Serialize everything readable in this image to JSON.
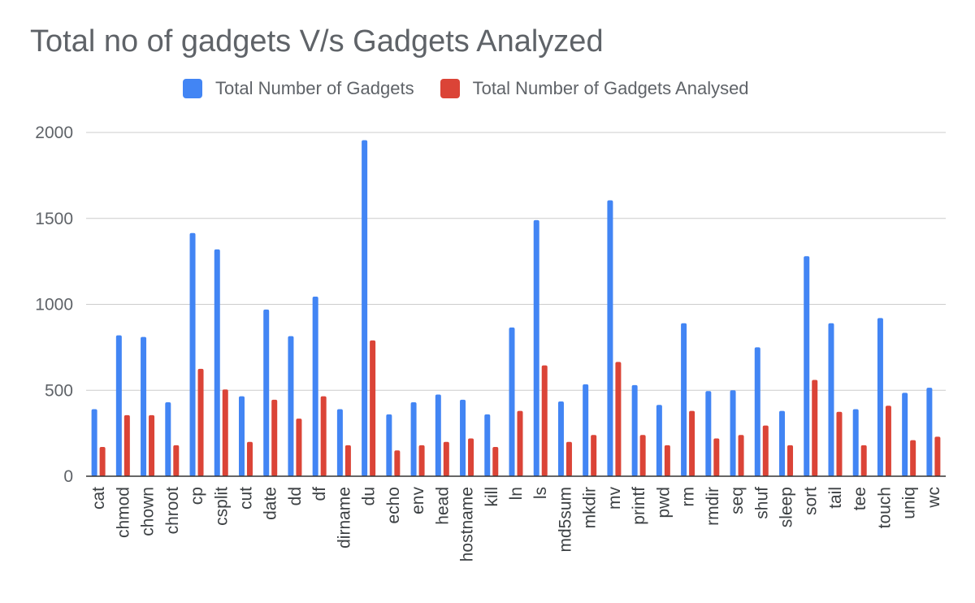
{
  "chart_data": {
    "type": "bar",
    "title": "Total no of gadgets V/s Gadgets Analyzed",
    "xlabel": "",
    "ylabel": "",
    "ylim": [
      0,
      2000
    ],
    "yticks": [
      0,
      500,
      1000,
      1500,
      2000
    ],
    "grid": true,
    "legend_position": "top",
    "categories": [
      "cat",
      "chmod",
      "chown",
      "chroot",
      "cp",
      "csplit",
      "cut",
      "date",
      "dd",
      "df",
      "dirname",
      "du",
      "echo",
      "env",
      "head",
      "hostname",
      "kill",
      "ln",
      "ls",
      "md5sum",
      "mkdir",
      "mv",
      "printf",
      "pwd",
      "rm",
      "rmdir",
      "seq",
      "shuf",
      "sleep",
      "sort",
      "tail",
      "tee",
      "touch",
      "uniq",
      "wc"
    ],
    "series": [
      {
        "name": "Total Number of Gadgets",
        "color": "#4285f4",
        "values": [
          390,
          820,
          810,
          430,
          1415,
          1320,
          465,
          970,
          815,
          1045,
          390,
          1955,
          360,
          430,
          475,
          445,
          360,
          865,
          1490,
          435,
          535,
          1605,
          530,
          415,
          890,
          495,
          500,
          750,
          380,
          1280,
          890,
          390,
          920,
          485,
          515
        ]
      },
      {
        "name": "Total Number of Gadgets Analysed",
        "color": "#db4437",
        "values": [
          170,
          355,
          355,
          180,
          625,
          505,
          200,
          445,
          335,
          465,
          180,
          790,
          150,
          180,
          200,
          220,
          170,
          380,
          645,
          200,
          240,
          665,
          240,
          180,
          380,
          220,
          240,
          295,
          180,
          560,
          375,
          180,
          410,
          210,
          230
        ]
      }
    ]
  }
}
